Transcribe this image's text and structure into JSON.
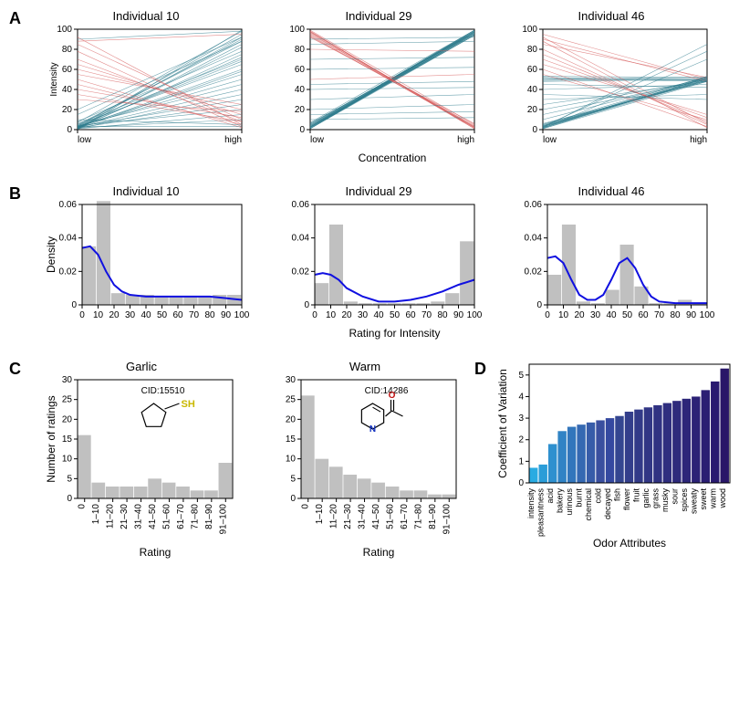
{
  "colors": {
    "teal": "#2c7a8c",
    "red": "#d65a5a",
    "blue_line": "#1010e0",
    "hist_fill": "#c0c0c0",
    "bar_gradient": [
      "#29abe2",
      "#2b9dd8",
      "#2e90cf",
      "#3083c5",
      "#3276bc",
      "#3569b2",
      "#375ca9",
      "#3a4f9f",
      "#3549a0",
      "#344690",
      "#333e8b",
      "#323a88",
      "#313685",
      "#303282",
      "#2f2e7f",
      "#2e2a7c",
      "#2d2679",
      "#2c2276",
      "#2b1e73",
      "#2a1a70",
      "#291668"
    ]
  },
  "rowA": {
    "label": "A",
    "ylabel": "Intensity",
    "xlabel": "Concentration",
    "xticks": [
      "low",
      "high"
    ],
    "yticks": [
      0,
      20,
      40,
      60,
      80,
      100
    ],
    "ylim": [
      0,
      100
    ],
    "panels": [
      {
        "title": "Individual 10",
        "lines": [
          [
            3,
            95,
            "t"
          ],
          [
            5,
            88,
            "t"
          ],
          [
            2,
            92,
            "t"
          ],
          [
            8,
            78,
            "t"
          ],
          [
            1,
            85,
            "t"
          ],
          [
            4,
            90,
            "t"
          ],
          [
            6,
            70,
            "t"
          ],
          [
            2,
            60,
            "t"
          ],
          [
            3,
            55,
            "t"
          ],
          [
            7,
            98,
            "t"
          ],
          [
            1,
            75,
            "t"
          ],
          [
            2,
            82,
            "t"
          ],
          [
            5,
            65,
            "t"
          ],
          [
            3,
            50,
            "t"
          ],
          [
            4,
            45,
            "t"
          ],
          [
            2,
            40,
            "t"
          ],
          [
            1,
            35,
            "t"
          ],
          [
            3,
            30,
            "t"
          ],
          [
            2,
            25,
            "t"
          ],
          [
            4,
            20,
            "t"
          ],
          [
            1,
            15,
            "t"
          ],
          [
            2,
            10,
            "t"
          ],
          [
            92,
            5,
            "r"
          ],
          [
            85,
            10,
            "r"
          ],
          [
            78,
            3,
            "r"
          ],
          [
            70,
            8,
            "r"
          ],
          [
            65,
            15,
            "r"
          ],
          [
            60,
            20,
            "r"
          ],
          [
            55,
            25,
            "r"
          ],
          [
            50,
            2,
            "r"
          ],
          [
            45,
            5,
            "r"
          ],
          [
            40,
            12,
            "r"
          ],
          [
            35,
            8,
            "r"
          ],
          [
            30,
            18,
            "r"
          ],
          [
            90,
            98,
            "t"
          ],
          [
            10,
            5,
            "t"
          ],
          [
            15,
            88,
            "t"
          ],
          [
            20,
            92,
            "t"
          ],
          [
            0,
            99,
            "t"
          ],
          [
            3,
            3,
            "t"
          ],
          [
            88,
            95,
            "r"
          ],
          [
            2,
            72,
            "t"
          ],
          [
            4,
            68,
            "t"
          ],
          [
            1,
            58,
            "t"
          ]
        ]
      },
      {
        "title": "Individual 29",
        "lines": [
          [
            2,
            98,
            "t"
          ],
          [
            3,
            97,
            "t"
          ],
          [
            1,
            96,
            "t"
          ],
          [
            4,
            99,
            "t"
          ],
          [
            2,
            95,
            "t"
          ],
          [
            5,
            98,
            "t"
          ],
          [
            3,
            94,
            "t"
          ],
          [
            1,
            97,
            "t"
          ],
          [
            6,
            96,
            "t"
          ],
          [
            2,
            99,
            "t"
          ],
          [
            4,
            95,
            "t"
          ],
          [
            3,
            98,
            "t"
          ],
          [
            1,
            94,
            "t"
          ],
          [
            5,
            97,
            "t"
          ],
          [
            2,
            96,
            "t"
          ],
          [
            7,
            99,
            "t"
          ],
          [
            3,
            95,
            "t"
          ],
          [
            1,
            98,
            "t"
          ],
          [
            4,
            97,
            "t"
          ],
          [
            2,
            94,
            "t"
          ],
          [
            6,
            96,
            "t"
          ],
          [
            3,
            99,
            "t"
          ],
          [
            98,
            2,
            "r"
          ],
          [
            97,
            3,
            "r"
          ],
          [
            96,
            1,
            "r"
          ],
          [
            95,
            4,
            "r"
          ],
          [
            94,
            2,
            "r"
          ],
          [
            99,
            5,
            "r"
          ],
          [
            93,
            3,
            "r"
          ],
          [
            98,
            1,
            "r"
          ],
          [
            92,
            6,
            "r"
          ],
          [
            97,
            2,
            "r"
          ],
          [
            50,
            55,
            "r"
          ],
          [
            45,
            48,
            "t"
          ],
          [
            40,
            42,
            "t"
          ],
          [
            60,
            62,
            "t"
          ],
          [
            30,
            35,
            "t"
          ],
          [
            70,
            72,
            "t"
          ],
          [
            20,
            25,
            "t"
          ],
          [
            80,
            78,
            "r"
          ],
          [
            15,
            18,
            "t"
          ],
          [
            85,
            88,
            "t"
          ],
          [
            10,
            12,
            "t"
          ],
          [
            90,
            92,
            "t"
          ]
        ]
      },
      {
        "title": "Individual 46",
        "lines": [
          [
            2,
            52,
            "t"
          ],
          [
            3,
            50,
            "t"
          ],
          [
            1,
            48,
            "t"
          ],
          [
            4,
            51,
            "t"
          ],
          [
            2,
            49,
            "t"
          ],
          [
            5,
            53,
            "t"
          ],
          [
            3,
            50,
            "t"
          ],
          [
            1,
            52,
            "t"
          ],
          [
            6,
            48,
            "t"
          ],
          [
            2,
            51,
            "t"
          ],
          [
            4,
            49,
            "t"
          ],
          [
            3,
            53,
            "t"
          ],
          [
            50,
            52,
            "t"
          ],
          [
            48,
            50,
            "t"
          ],
          [
            52,
            49,
            "t"
          ],
          [
            49,
            51,
            "t"
          ],
          [
            51,
            48,
            "t"
          ],
          [
            53,
            52,
            "t"
          ],
          [
            95,
            50,
            "r"
          ],
          [
            90,
            48,
            "r"
          ],
          [
            85,
            52,
            "r"
          ],
          [
            80,
            5,
            "r"
          ],
          [
            75,
            8,
            "r"
          ],
          [
            70,
            12,
            "r"
          ],
          [
            65,
            15,
            "r"
          ],
          [
            60,
            3,
            "r"
          ],
          [
            55,
            10,
            "r"
          ],
          [
            88,
            2,
            "r"
          ],
          [
            92,
            6,
            "r"
          ],
          [
            40,
            45,
            "t"
          ],
          [
            45,
            42,
            "t"
          ],
          [
            30,
            35,
            "t"
          ],
          [
            35,
            30,
            "t"
          ],
          [
            20,
            50,
            "t"
          ],
          [
            25,
            48,
            "t"
          ],
          [
            10,
            52,
            "t"
          ],
          [
            15,
            50,
            "t"
          ],
          [
            5,
            49,
            "t"
          ],
          [
            2,
            85,
            "t"
          ],
          [
            3,
            78,
            "t"
          ],
          [
            1,
            70,
            "t"
          ]
        ]
      }
    ]
  },
  "rowB": {
    "label": "B",
    "ylabel": "Density",
    "xlabel": "Rating for Intensity",
    "xtick_labels": [
      "0",
      "10",
      "20",
      "30",
      "40",
      "50",
      "60",
      "70",
      "80",
      "90",
      "100"
    ],
    "yticks": [
      0,
      0.02,
      0.04,
      0.06
    ],
    "ylim": [
      0,
      0.06
    ],
    "panels": [
      {
        "title": "Individual 10",
        "bars": [
          0.035,
          0.062,
          0.007,
          0.006,
          0.006,
          0.005,
          0.005,
          0.005,
          0.005,
          0.006,
          0.006
        ],
        "curve": [
          [
            0,
            0.034
          ],
          [
            5,
            0.035
          ],
          [
            10,
            0.03
          ],
          [
            15,
            0.02
          ],
          [
            20,
            0.012
          ],
          [
            25,
            0.008
          ],
          [
            30,
            0.006
          ],
          [
            40,
            0.005
          ],
          [
            50,
            0.005
          ],
          [
            60,
            0.005
          ],
          [
            70,
            0.005
          ],
          [
            80,
            0.005
          ],
          [
            90,
            0.004
          ],
          [
            100,
            0.003
          ]
        ]
      },
      {
        "title": "Individual 29",
        "bars": [
          0.013,
          0.048,
          0.002,
          0.001,
          0.001,
          0.001,
          0.001,
          0.001,
          0.002,
          0.007,
          0.038
        ],
        "curve": [
          [
            0,
            0.018
          ],
          [
            5,
            0.019
          ],
          [
            10,
            0.018
          ],
          [
            15,
            0.015
          ],
          [
            20,
            0.01
          ],
          [
            30,
            0.005
          ],
          [
            40,
            0.002
          ],
          [
            50,
            0.002
          ],
          [
            60,
            0.003
          ],
          [
            70,
            0.005
          ],
          [
            80,
            0.008
          ],
          [
            90,
            0.012
          ],
          [
            100,
            0.015
          ]
        ]
      },
      {
        "title": "Individual 46",
        "bars": [
          0.018,
          0.048,
          0.002,
          0.001,
          0.009,
          0.036,
          0.011,
          0.001,
          0.001,
          0.003,
          0.001
        ],
        "curve": [
          [
            0,
            0.028
          ],
          [
            5,
            0.029
          ],
          [
            10,
            0.025
          ],
          [
            15,
            0.015
          ],
          [
            20,
            0.006
          ],
          [
            25,
            0.003
          ],
          [
            30,
            0.003
          ],
          [
            35,
            0.006
          ],
          [
            40,
            0.015
          ],
          [
            45,
            0.025
          ],
          [
            50,
            0.028
          ],
          [
            55,
            0.022
          ],
          [
            60,
            0.012
          ],
          [
            65,
            0.005
          ],
          [
            70,
            0.002
          ],
          [
            80,
            0.001
          ],
          [
            90,
            0.001
          ],
          [
            100,
            0.001
          ]
        ]
      }
    ]
  },
  "rowC": {
    "label": "C",
    "ylabel": "Number of ratings",
    "xlabel": "Rating",
    "xtick_labels": [
      "0",
      "1–10",
      "11–20",
      "21–30",
      "31–40",
      "41–50",
      "51–60",
      "61–70",
      "71–80",
      "81–90",
      "91–100"
    ],
    "yticks": [
      0,
      5,
      10,
      15,
      20,
      25,
      30
    ],
    "ylim": [
      0,
      30
    ],
    "panels": [
      {
        "title": "Garlic",
        "cid": "CID:15510",
        "bars": [
          16,
          4,
          3,
          3,
          3,
          5,
          4,
          3,
          2,
          2,
          9
        ],
        "mol": "cyclopentane-sh"
      },
      {
        "title": "Warm",
        "cid": "CID:14286",
        "bars": [
          26,
          10,
          8,
          6,
          5,
          4,
          3,
          2,
          2,
          1,
          1
        ],
        "mol": "pyridine-acetyl"
      }
    ]
  },
  "rowD": {
    "label": "D",
    "ylabel": "Coefficient of Variation",
    "xlabel": "Odor Attributes",
    "yticks": [
      0,
      1,
      2,
      3,
      4,
      5
    ],
    "ylim": [
      0,
      5.5
    ],
    "bars": [
      {
        "label": "intensity",
        "v": 0.7
      },
      {
        "label": "pleasantness",
        "v": 0.85
      },
      {
        "label": "acid",
        "v": 1.8
      },
      {
        "label": "bakery",
        "v": 2.4
      },
      {
        "label": "urinous",
        "v": 2.6
      },
      {
        "label": "burnt",
        "v": 2.7
      },
      {
        "label": "chemical",
        "v": 2.8
      },
      {
        "label": "cold",
        "v": 2.9
      },
      {
        "label": "decayed",
        "v": 3.0
      },
      {
        "label": "fish",
        "v": 3.1
      },
      {
        "label": "flower",
        "v": 3.3
      },
      {
        "label": "fruit",
        "v": 3.4
      },
      {
        "label": "garlic",
        "v": 3.5
      },
      {
        "label": "grass",
        "v": 3.6
      },
      {
        "label": "musky",
        "v": 3.7
      },
      {
        "label": "sour",
        "v": 3.8
      },
      {
        "label": "spices",
        "v": 3.9
      },
      {
        "label": "sweaty",
        "v": 4.0
      },
      {
        "label": "sweet",
        "v": 4.3
      },
      {
        "label": "warm",
        "v": 4.7
      },
      {
        "label": "wood",
        "v": 5.3
      }
    ]
  }
}
